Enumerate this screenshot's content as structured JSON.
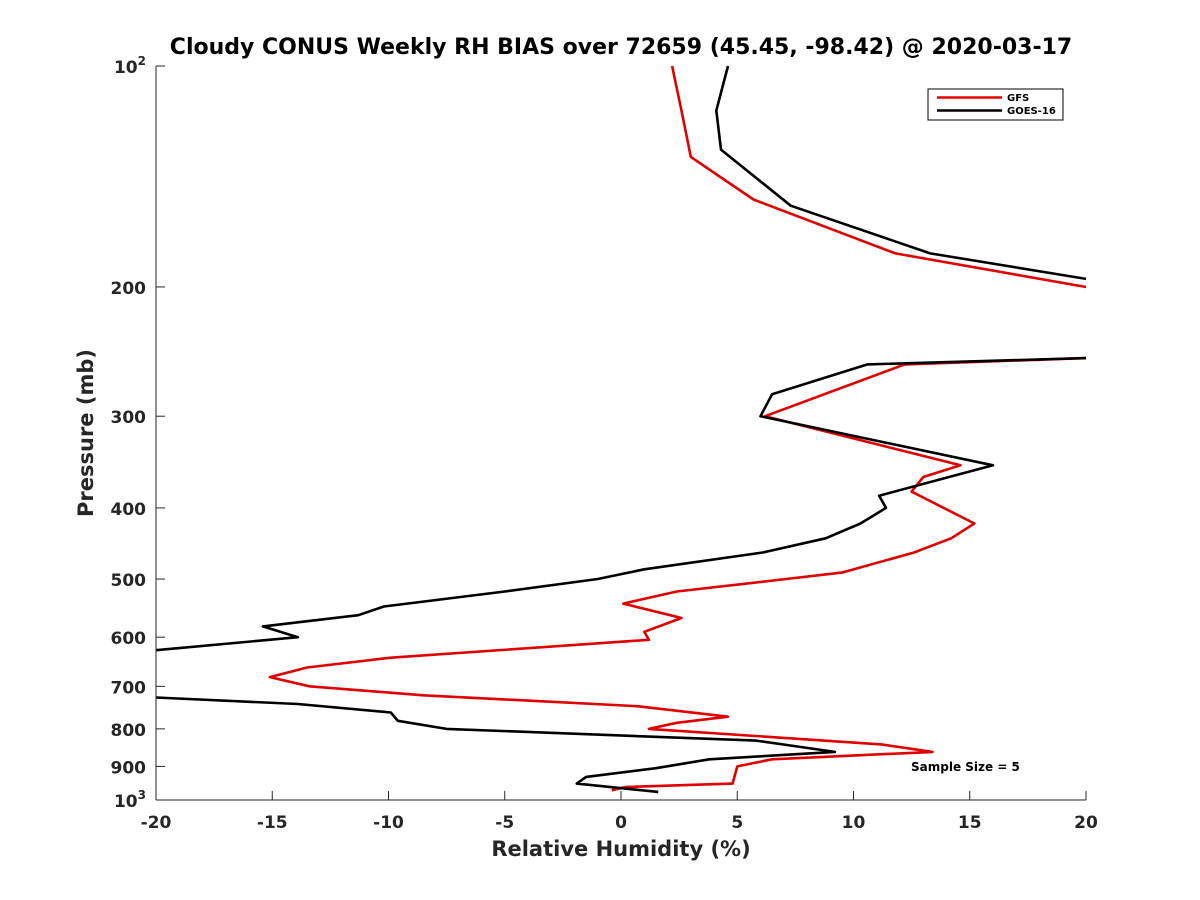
{
  "chart_data": {
    "type": "line",
    "title": "Cloudy CONUS Weekly RH BIAS over 72659 (45.45, -98.42) @ 2020-03-17",
    "xlabel": "Relative Humidity (%)",
    "ylabel": "Pressure (mb)",
    "xlim": [
      -20,
      20
    ],
    "ylim": [
      100,
      1000
    ],
    "y_scale": "log",
    "y_reversed": true,
    "x_ticks": [
      "-20",
      "-15",
      "-10",
      "-5",
      "0",
      "5",
      "10",
      "15",
      "20"
    ],
    "y_ticks": [
      {
        "value": 100,
        "base": "10",
        "sup": "2"
      },
      {
        "value": 200,
        "label": "200"
      },
      {
        "value": 300,
        "label": "300"
      },
      {
        "value": 400,
        "label": "400"
      },
      {
        "value": 500,
        "label": "500"
      },
      {
        "value": 600,
        "label": "600"
      },
      {
        "value": 700,
        "label": "700"
      },
      {
        "value": 800,
        "label": "800"
      },
      {
        "value": 900,
        "label": "900"
      },
      {
        "value": 1000,
        "base": "10",
        "sup": "3"
      }
    ],
    "grid": false,
    "legend_position": "top-right",
    "annotation": "Sample Size = 5",
    "series": [
      {
        "name": "GFS",
        "color": "#e00000",
        "points": [
          [
            2.2,
            100
          ],
          [
            2.6,
            115
          ],
          [
            3.0,
            133
          ],
          [
            5.7,
            152
          ],
          [
            11.8,
            180
          ],
          [
            20,
            200
          ],
          [
            null,
            null
          ],
          [
            20,
            250
          ],
          [
            12.2,
            255
          ],
          [
            6.2,
            300
          ],
          [
            14.6,
            350
          ],
          [
            13.0,
            363
          ],
          [
            12.5,
            380
          ],
          [
            15.2,
            420
          ],
          [
            14.2,
            440
          ],
          [
            12.6,
            460
          ],
          [
            9.5,
            490
          ],
          [
            7.1,
            500
          ],
          [
            2.4,
            520
          ],
          [
            0.1,
            540
          ],
          [
            2.6,
            565
          ],
          [
            1.0,
            590
          ],
          [
            1.2,
            605
          ],
          [
            -9.9,
            640
          ],
          [
            -13.5,
            660
          ],
          [
            -15.1,
            680
          ],
          [
            -13.4,
            700
          ],
          [
            -8.5,
            720
          ],
          [
            0.7,
            745
          ],
          [
            4.6,
            770
          ],
          [
            2.4,
            785
          ],
          [
            1.2,
            800
          ],
          [
            11.2,
            840
          ],
          [
            13.4,
            860
          ],
          [
            6.5,
            880
          ],
          [
            5.0,
            900
          ],
          [
            4.8,
            950
          ],
          [
            0.2,
            960
          ],
          [
            -0.4,
            970
          ]
        ]
      },
      {
        "name": "GOES-16",
        "color": "#000000",
        "points": [
          [
            4.6,
            100
          ],
          [
            4.1,
            115
          ],
          [
            4.3,
            130
          ],
          [
            7.3,
            155
          ],
          [
            13.3,
            180
          ],
          [
            20,
            195
          ],
          [
            null,
            null
          ],
          [
            20,
            250
          ],
          [
            10.6,
            255
          ],
          [
            6.5,
            280
          ],
          [
            6.0,
            300
          ],
          [
            16.0,
            350
          ],
          [
            11.1,
            385
          ],
          [
            11.4,
            400
          ],
          [
            10.3,
            420
          ],
          [
            8.8,
            440
          ],
          [
            6.1,
            460
          ],
          [
            1.0,
            485
          ],
          [
            -1.0,
            500
          ],
          [
            -5.0,
            520
          ],
          [
            -10.2,
            545
          ],
          [
            -11.3,
            560
          ],
          [
            -15.4,
            580
          ],
          [
            -13.9,
            600
          ],
          [
            -20,
            625
          ],
          [
            null,
            null
          ],
          [
            -20,
            725
          ],
          [
            -13.9,
            740
          ],
          [
            -9.9,
            760
          ],
          [
            -9.6,
            780
          ],
          [
            -7.5,
            800
          ],
          [
            5.8,
            830
          ],
          [
            9.2,
            860
          ],
          [
            3.8,
            880
          ],
          [
            1.5,
            905
          ],
          [
            -1.5,
            930
          ],
          [
            -1.9,
            950
          ],
          [
            1.6,
            975
          ]
        ]
      }
    ]
  }
}
